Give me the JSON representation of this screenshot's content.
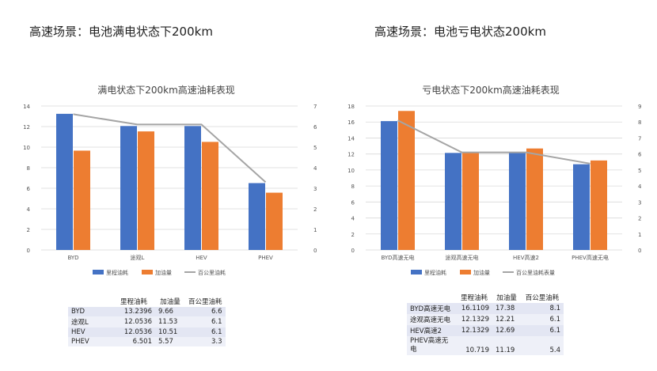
{
  "headings": {
    "left": "高速场景：电池满电状态下200km",
    "right": "高速场景：电池亏电状态200km"
  },
  "colors": {
    "bar1": "#4472c4",
    "bar2": "#ed7d31",
    "line": "#a5a5a5"
  },
  "chart_data": [
    {
      "type": "bar",
      "title": "满电状态下200km高速油耗表现",
      "categories": [
        "BYD",
        "途观L",
        "HEV",
        "PHEV"
      ],
      "series": [
        {
          "name": "里程油耗",
          "values": [
            13.2396,
            12.0536,
            12.0536,
            6.501
          ],
          "axis": "left",
          "kind": "bar"
        },
        {
          "name": "加油量",
          "values": [
            9.66,
            11.53,
            10.51,
            5.57
          ],
          "axis": "left",
          "kind": "bar"
        },
        {
          "name": "百公里油耗",
          "values": [
            6.6,
            6.1,
            6.1,
            3.3
          ],
          "axis": "right",
          "kind": "line"
        }
      ],
      "ylim": [
        0,
        14
      ],
      "yticks": [
        0,
        2,
        4,
        6,
        8,
        10,
        12,
        14
      ],
      "y2lim": [
        0,
        7
      ],
      "y2ticks": [
        0,
        1,
        2,
        3,
        4,
        5,
        6,
        7
      ],
      "grid": true,
      "legend": "bottom"
    },
    {
      "type": "bar",
      "title": "亏电状态下200km高速油耗表现",
      "categories": [
        "BYD高速无电",
        "途观高速无电",
        "HEV高速2",
        "PHEV高速无电"
      ],
      "series": [
        {
          "name": "里程油耗",
          "values": [
            16.1109,
            12.1329,
            12.1329,
            10.719
          ],
          "axis": "left",
          "kind": "bar"
        },
        {
          "name": "加油量",
          "values": [
            17.38,
            12.21,
            12.69,
            11.19
          ],
          "axis": "left",
          "kind": "bar"
        },
        {
          "name": "百公里油耗表量",
          "values": [
            8.1,
            6.1,
            6.1,
            5.4
          ],
          "axis": "right",
          "kind": "line"
        }
      ],
      "ylim": [
        0,
        18
      ],
      "yticks": [
        0,
        2,
        4,
        6,
        8,
        10,
        12,
        14,
        16,
        18
      ],
      "y2lim": [
        0,
        9
      ],
      "y2ticks": [
        0,
        1,
        2,
        3,
        4,
        5,
        6,
        7,
        8,
        9
      ],
      "grid": true,
      "legend": "bottom"
    }
  ],
  "tables": {
    "left": {
      "headers": [
        "",
        "里程油耗",
        "加油量",
        "百公里油耗"
      ],
      "rows": [
        [
          "BYD",
          "13.2396",
          "9.66",
          "6.6"
        ],
        [
          "途观L",
          "12.0536",
          "11.53",
          "6.1"
        ],
        [
          "HEV",
          "12.0536",
          "10.51",
          "6.1"
        ],
        [
          "PHEV",
          "6.501",
          "5.57",
          "3.3"
        ]
      ]
    },
    "right": {
      "headers": [
        "",
        "里程油耗",
        "加油量",
        "百公里油耗"
      ],
      "rows": [
        [
          "BYD高速无电",
          "16.1109",
          "17.38",
          "8.1"
        ],
        [
          "途观高速无电",
          "12.1329",
          "12.21",
          "6.1"
        ],
        [
          "HEV高速2",
          "12.1329",
          "12.69",
          "6.1"
        ],
        [
          "PHEV高速无电",
          "10.719",
          "11.19",
          "5.4"
        ]
      ]
    }
  }
}
